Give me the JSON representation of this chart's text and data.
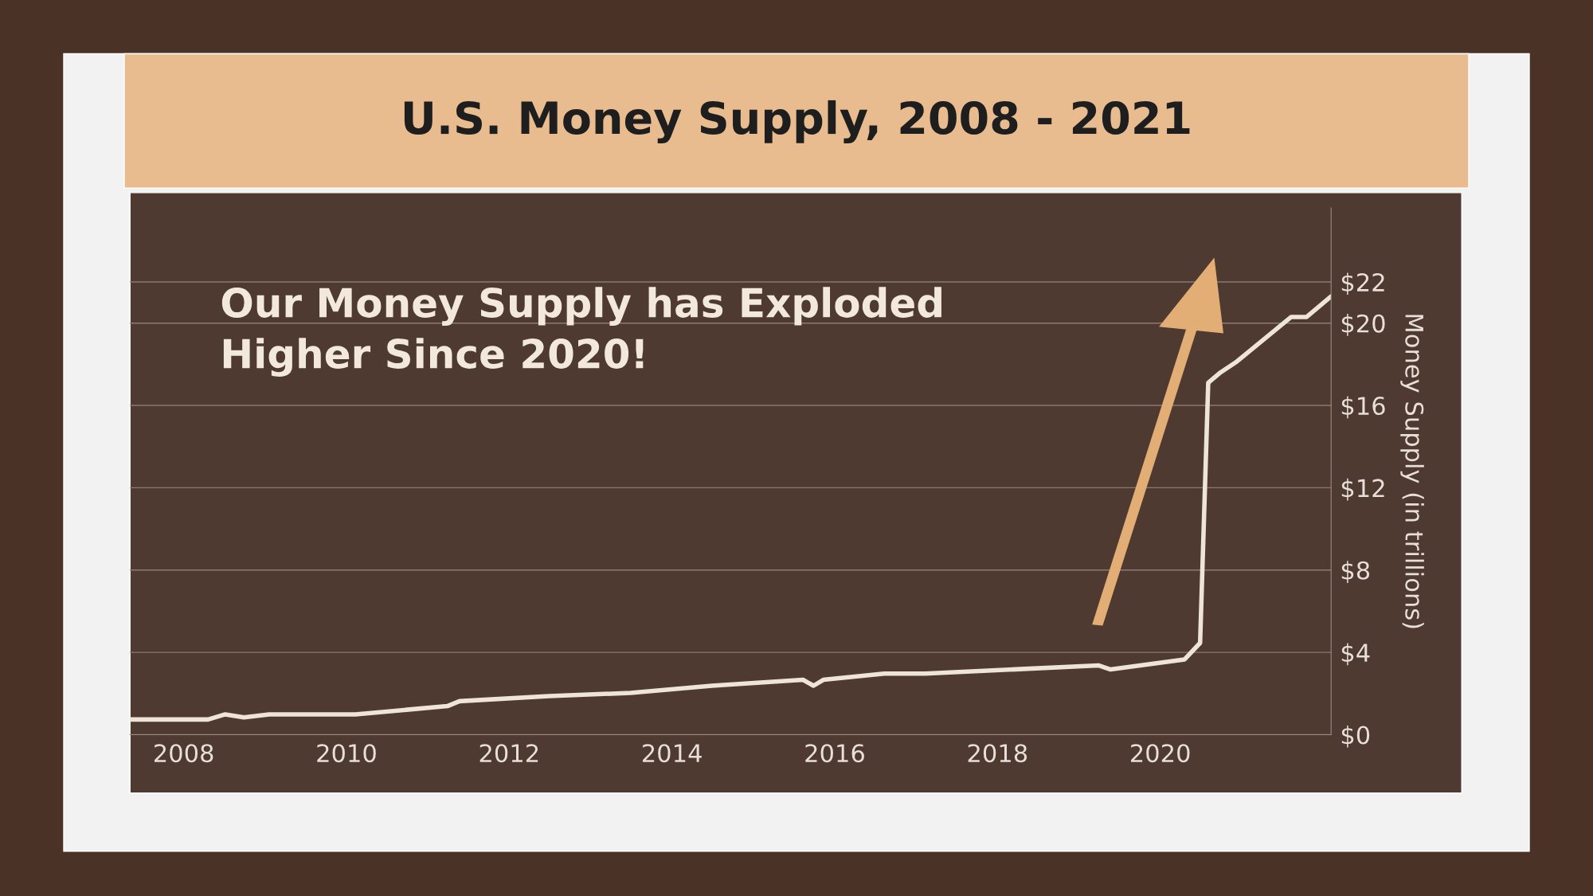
{
  "chart_data": {
    "type": "line",
    "title": "U.S. Money Supply, 2008 - 2021",
    "ylabel": "Money Supply (in trillions)",
    "annotations": [
      "Our Money Supply has Exploded Higher Since 2020!"
    ],
    "x": [
      2007.34,
      2008.3,
      2008.51,
      2008.74,
      2009.05,
      2010.11,
      2011.24,
      2011.39,
      2012.49,
      2013.49,
      2014.49,
      2015.61,
      2015.74,
      2015.86,
      2016.61,
      2017.11,
      2019.24,
      2019.39,
      2020.3,
      2020.49,
      2020.59,
      2020.74,
      2020.93,
      2021.61,
      2021.8,
      2022.1
    ],
    "series": [
      {
        "color": "#efe4d8",
        "values": [
          0.74,
          0.74,
          0.99,
          0.84,
          0.99,
          0.99,
          1.39,
          1.63,
          1.88,
          2.03,
          2.38,
          2.67,
          2.38,
          2.67,
          2.97,
          2.97,
          3.37,
          3.17,
          3.66,
          4.46,
          17.1,
          17.6,
          18.1,
          20.3,
          20.3,
          21.3
        ]
      }
    ],
    "xlim": [
      2007.34,
      2022.1
    ],
    "xticks": [
      2008,
      2010,
      2012,
      2014,
      2016,
      2018,
      2020
    ],
    "ylim": [
      0,
      25.6
    ],
    "yticks": [
      {
        "value": 0,
        "label": "$0"
      },
      {
        "value": 4,
        "label": "$4"
      },
      {
        "value": 8,
        "label": "$8"
      },
      {
        "value": 12,
        "label": "$12"
      },
      {
        "value": 16,
        "label": "$16"
      },
      {
        "value": 20,
        "label": "$20"
      },
      {
        "value": 22,
        "label": "$22"
      }
    ],
    "grid": "y",
    "legend": false,
    "marker": "none",
    "line_style": "solid"
  }
}
